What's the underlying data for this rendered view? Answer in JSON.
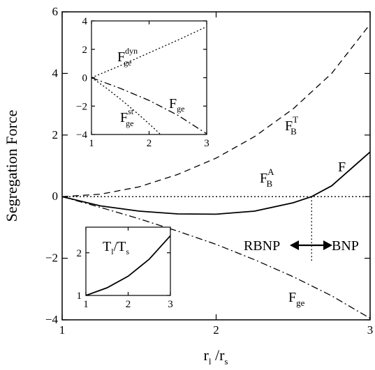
{
  "chart_data": [
    {
      "panel": "main",
      "type": "line",
      "xlabel": {
        "main": "r",
        "sub1": "l",
        "sep": " /r",
        "sub2": "s"
      },
      "ylabel": "Segregation Force",
      "xlim": [
        1,
        3
      ],
      "ylim": [
        -4,
        6
      ],
      "xticks": [
        "1",
        "2",
        "3"
      ],
      "yticks": [
        "−4",
        "−2",
        "0",
        "2",
        "4",
        "6"
      ],
      "series": [
        {
          "label": {
            "main": "F",
            "sup": "T",
            "sub": "B"
          },
          "style": "dashed",
          "x": [
            1.0,
            1.25,
            1.5,
            1.75,
            2.0,
            2.25,
            2.5,
            2.75,
            3.0
          ],
          "y": [
            0.0,
            0.08,
            0.32,
            0.72,
            1.25,
            1.95,
            2.85,
            4.0,
            5.6
          ]
        },
        {
          "label": {
            "main": "F",
            "sup": "",
            "sub": ""
          },
          "style": "solid",
          "x": [
            1.0,
            1.25,
            1.5,
            1.75,
            2.0,
            2.25,
            2.5,
            2.62,
            2.75,
            3.0
          ],
          "y": [
            0.0,
            -0.3,
            -0.47,
            -0.56,
            -0.57,
            -0.47,
            -0.2,
            0.0,
            0.35,
            1.45
          ]
        },
        {
          "label": {
            "main": "F",
            "sup": "",
            "sub": "ge"
          },
          "style": "dashdot",
          "x": [
            1.0,
            1.25,
            1.5,
            1.75,
            2.0,
            2.25,
            2.5,
            2.75,
            3.0
          ],
          "y": [
            0.0,
            -0.35,
            -0.72,
            -1.12,
            -1.55,
            -2.05,
            -2.6,
            -3.22,
            -3.95
          ]
        },
        {
          "label": {
            "main": "",
            "sup": "",
            "sub": ""
          },
          "style": "dotted",
          "x": [
            1.0,
            3.0
          ],
          "y": [
            0.0,
            0.0
          ]
        }
      ],
      "annotations": {
        "fba": {
          "main": "F",
          "sup": "A",
          "sub": "B"
        },
        "transition_x": 2.62,
        "rbnp": "RBNP",
        "bnp": "BNP"
      }
    },
    {
      "panel": "inset-top",
      "type": "line",
      "xlim": [
        1,
        3
      ],
      "ylim": [
        -4,
        4
      ],
      "xticks": [
        "1",
        "2",
        "3"
      ],
      "yticks": [
        "−4",
        "−2",
        "0",
        "2",
        "4"
      ],
      "series": [
        {
          "label": {
            "main": "F",
            "sup": "dyn",
            "sub": "ge"
          },
          "style": "dotted",
          "x": [
            1.0,
            1.5,
            2.0,
            2.5,
            3.0
          ],
          "y": [
            0.0,
            0.85,
            1.75,
            2.65,
            3.6
          ]
        },
        {
          "label": {
            "main": "F",
            "sup": "",
            "sub": "ge"
          },
          "style": "dashdot",
          "x": [
            1.0,
            1.5,
            2.0,
            2.5,
            3.0
          ],
          "y": [
            0.0,
            -0.75,
            -1.6,
            -2.65,
            -3.95
          ]
        },
        {
          "label": {
            "main": "F",
            "sup": "st",
            "sub": "ge"
          },
          "style": "dotted",
          "x": [
            1.0,
            1.25,
            1.5,
            1.75,
            2.0,
            2.2
          ],
          "y": [
            0.0,
            -0.7,
            -1.5,
            -2.35,
            -3.25,
            -4.0
          ]
        }
      ]
    },
    {
      "panel": "inset-bottom",
      "type": "line",
      "xlim": [
        1,
        3
      ],
      "ylim": [
        1,
        2.6
      ],
      "xticks": [
        "1",
        "2",
        "3"
      ],
      "yticks": [
        "1",
        "2"
      ],
      "label": {
        "main1": "T",
        "sub1": "l",
        "sep": "/T",
        "sub2": "s"
      },
      "series": [
        {
          "label": {
            "main": "",
            "sup": "",
            "sub": ""
          },
          "style": "solid",
          "x": [
            1.0,
            1.5,
            2.0,
            2.5,
            3.0
          ],
          "y": [
            1.0,
            1.18,
            1.45,
            1.85,
            2.4
          ]
        }
      ]
    }
  ]
}
